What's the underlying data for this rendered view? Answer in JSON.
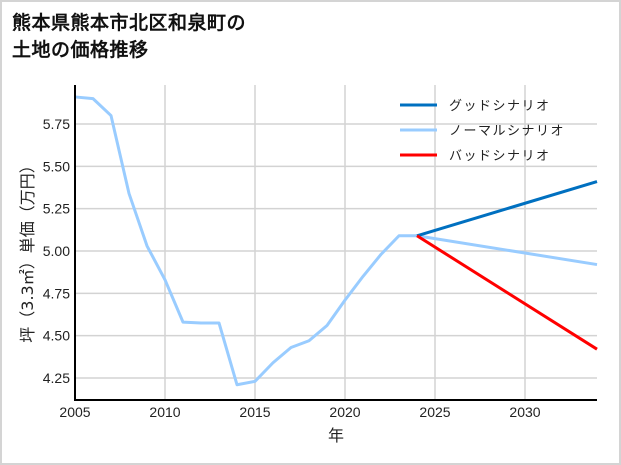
{
  "title": {
    "line1": "熊本県熊本市北区和泉町の",
    "line2": "土地の価格推移"
  },
  "colors": {
    "good": "#0070c0",
    "normal": "#99ccff",
    "bad": "#ff0000",
    "grid": "#d3d3d3",
    "axis": "#000000",
    "frame": "#d4d4d4"
  },
  "chart_data": {
    "type": "line",
    "title": "熊本県熊本市北区和泉町の土地の価格推移",
    "xlabel": "年",
    "ylabel": "坪（3.3㎡）単価（万円）",
    "xlim": [
      2005,
      2034
    ],
    "ylim": [
      4.12,
      5.97
    ],
    "xticks": [
      2005,
      2010,
      2015,
      2020,
      2025,
      2030
    ],
    "yticks": [
      4.25,
      4.5,
      4.75,
      5.0,
      5.25,
      5.5,
      5.75
    ],
    "ytick_labels": [
      "4.25",
      "4.50",
      "4.75",
      "5.00",
      "5.25",
      "5.50",
      "5.75"
    ],
    "grid": true,
    "legend_position": "upper right",
    "series": [
      {
        "name": "グッドシナリオ",
        "color": "#0070c0",
        "x": [
          2024,
          2034
        ],
        "y": [
          5.09,
          5.41
        ]
      },
      {
        "name": "ノーマルシナリオ",
        "color": "#99ccff",
        "x": [
          2005,
          2006,
          2007,
          2008,
          2009,
          2010,
          2011,
          2012,
          2013,
          2014,
          2015,
          2016,
          2017,
          2018,
          2019,
          2020,
          2021,
          2022,
          2023,
          2024,
          2034
        ],
        "y": [
          5.91,
          5.9,
          5.8,
          5.34,
          5.03,
          4.83,
          4.58,
          4.575,
          4.575,
          4.21,
          4.23,
          4.34,
          4.43,
          4.47,
          4.56,
          4.71,
          4.85,
          4.98,
          5.09,
          5.09,
          4.92
        ]
      },
      {
        "name": "バッドシナリオ",
        "color": "#ff0000",
        "x": [
          2024,
          2034
        ],
        "y": [
          5.09,
          4.42
        ]
      }
    ]
  }
}
